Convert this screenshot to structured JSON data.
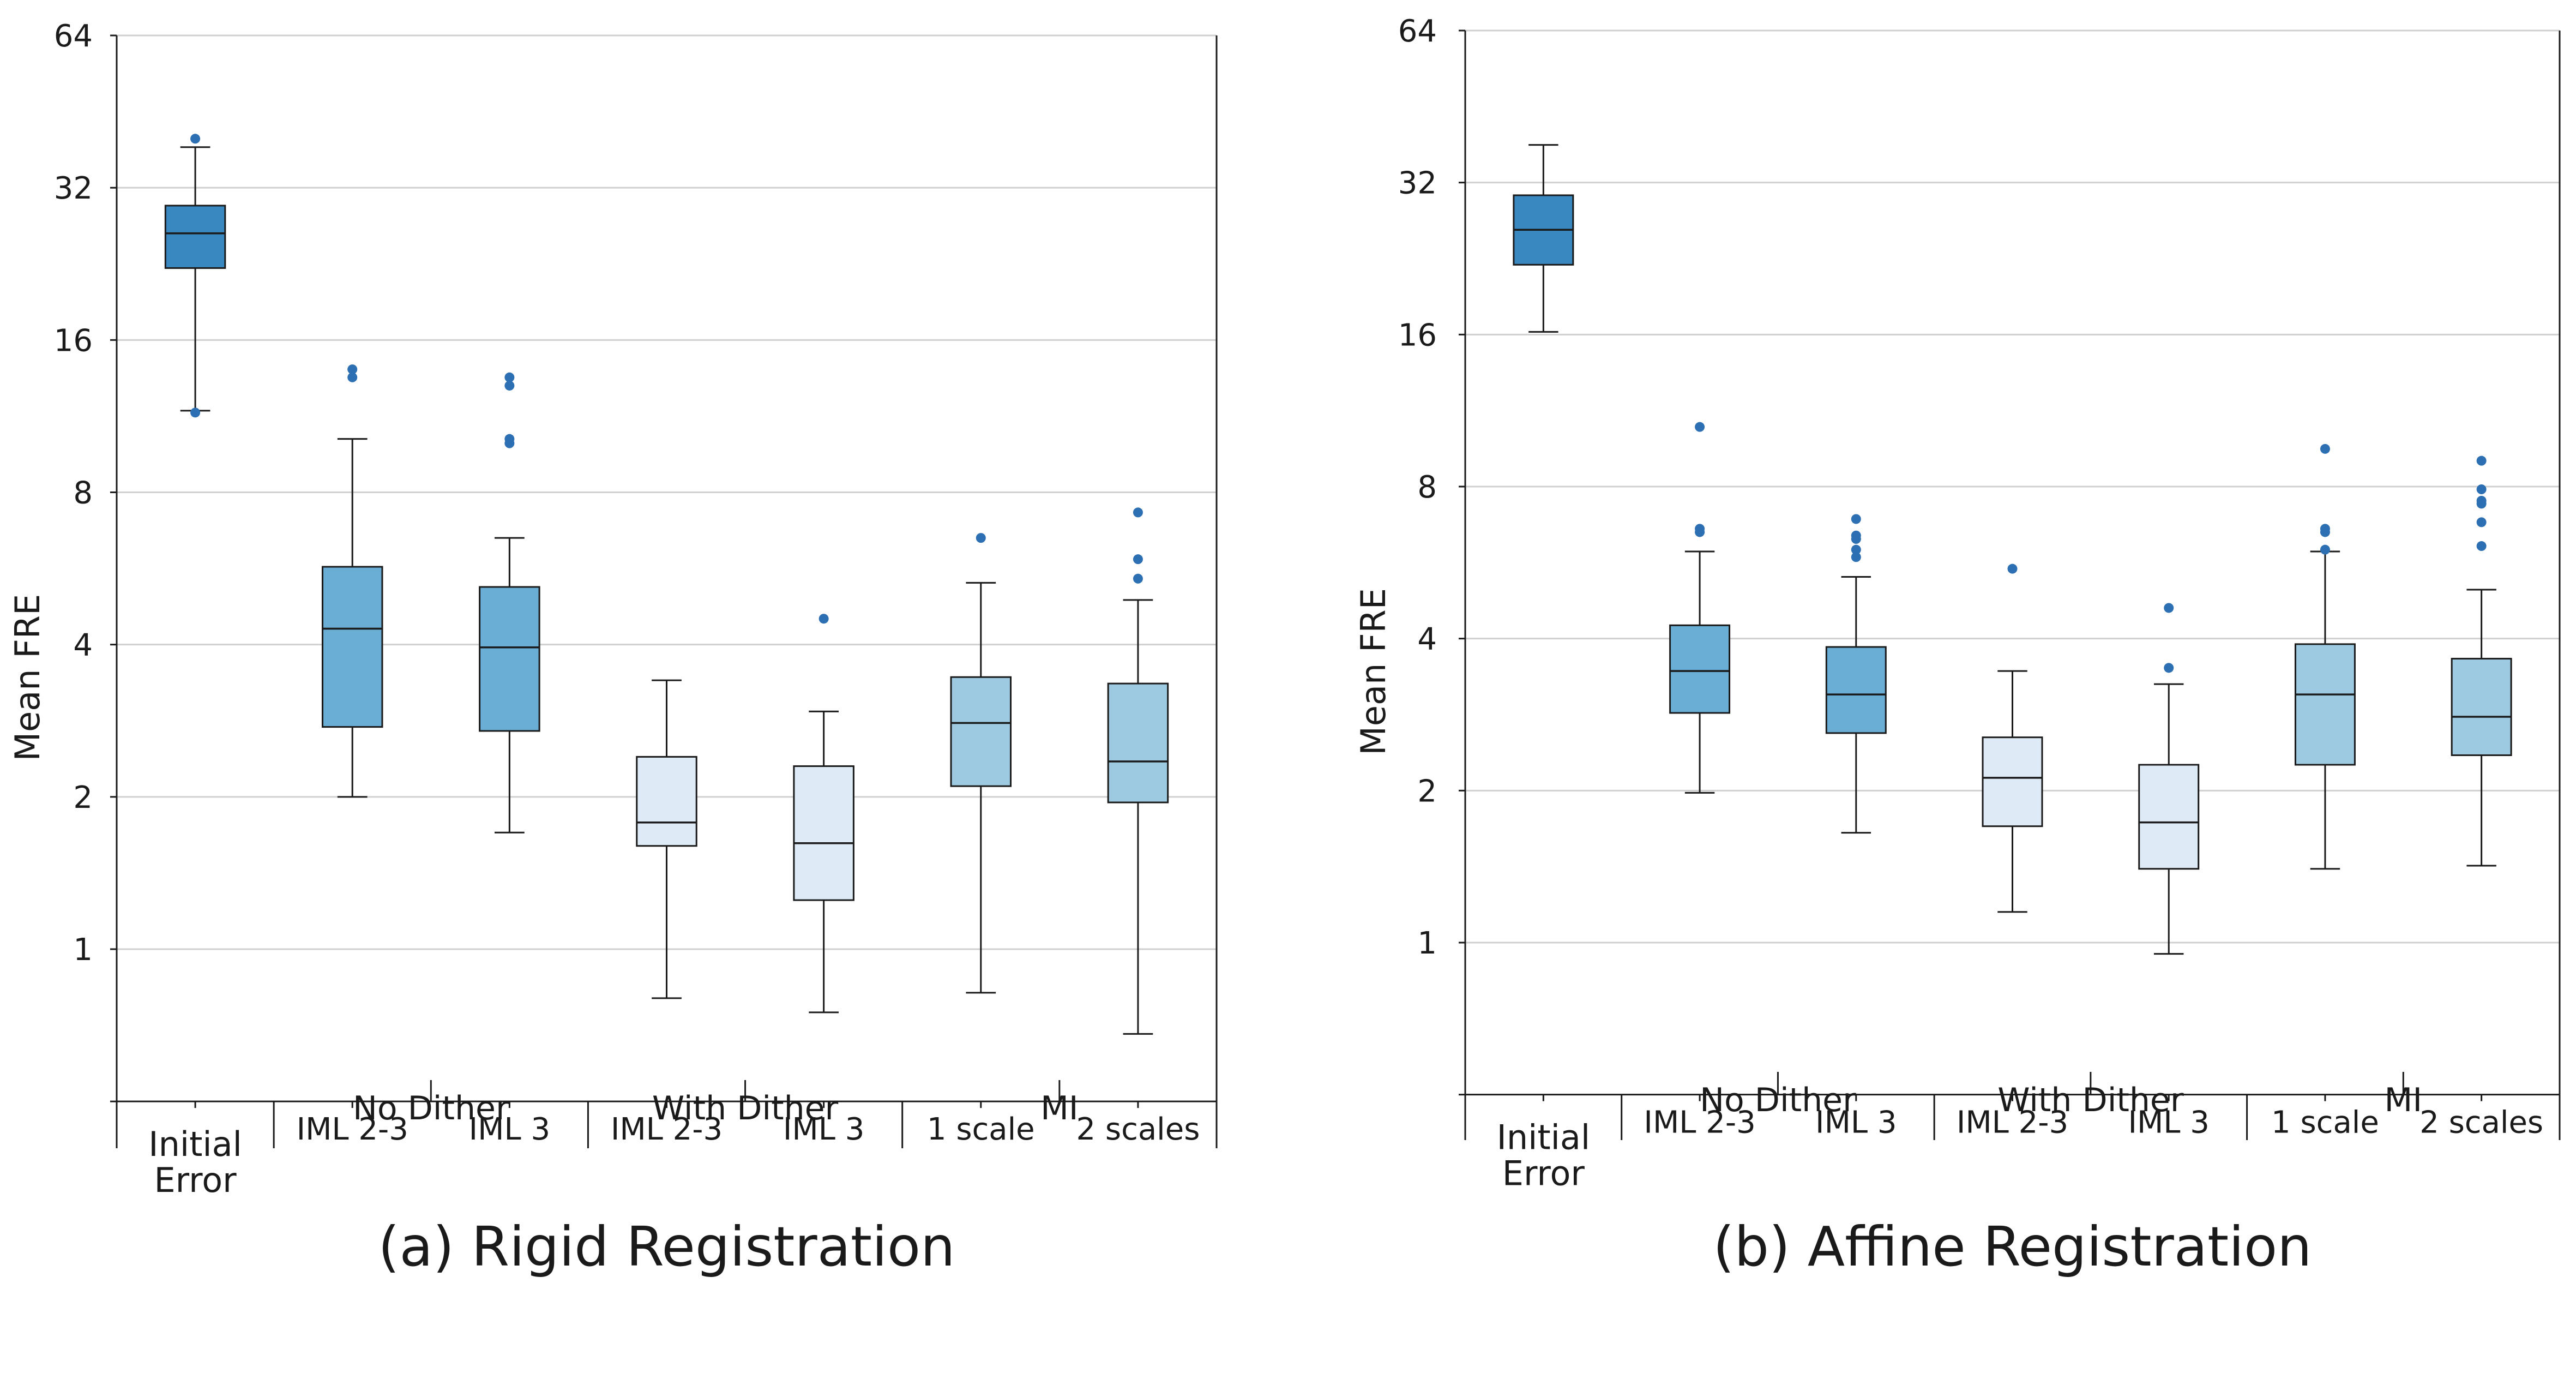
{
  "colors": {
    "initial": "#3a88c0",
    "no_dither": "#6aaed6",
    "with_dither": "#deebf6",
    "mi": "#9ecae1",
    "outlier": "#2d6fb3",
    "grid": "#d0d0d0",
    "box_edge": "#1a1a1a"
  },
  "chart_data": [
    {
      "type": "boxplot",
      "caption": "(a) Rigid Registration",
      "ylabel": "Mean FRE",
      "yscale": "log2",
      "ylim": [
        0.5,
        64
      ],
      "yticks": [
        1,
        2,
        4,
        8,
        16,
        32,
        64
      ],
      "ytick_labels": [
        "1",
        "2",
        "4",
        "8",
        "16",
        "32",
        "64"
      ],
      "grid": true,
      "boxes": [
        {
          "label": "Initial\nError",
          "group": "initial",
          "whislo": 11.6,
          "q1": 22.2,
          "med": 26.0,
          "q3": 29.5,
          "whishi": 38.5,
          "fliers": [
            11.5,
            40.0
          ]
        },
        {
          "label": "IML 2-3",
          "group": "no_dither",
          "whislo": 2.0,
          "q1": 2.75,
          "med": 4.3,
          "q3": 5.7,
          "whishi": 10.2,
          "fliers": [
            13.5,
            14.0
          ]
        },
        {
          "label": "IML 3",
          "group": "no_dither",
          "whislo": 1.7,
          "q1": 2.7,
          "med": 3.95,
          "q3": 5.2,
          "whishi": 6.5,
          "fliers": [
            10.0,
            10.2,
            13.0,
            13.5
          ]
        },
        {
          "label": "IML 2-3",
          "group": "with_dither",
          "whislo": 0.8,
          "q1": 1.6,
          "med": 1.78,
          "q3": 2.4,
          "whishi": 3.4,
          "fliers": []
        },
        {
          "label": "IML 3",
          "group": "with_dither",
          "whislo": 0.75,
          "q1": 1.25,
          "med": 1.62,
          "q3": 2.3,
          "whishi": 2.95,
          "fliers": [
            4.5
          ]
        },
        {
          "label": "1 scale",
          "group": "mi",
          "whislo": 0.82,
          "q1": 2.1,
          "med": 2.8,
          "q3": 3.45,
          "whishi": 5.3,
          "fliers": [
            6.5
          ]
        },
        {
          "label": "2 scales",
          "group": "mi",
          "whislo": 0.68,
          "q1": 1.95,
          "med": 2.35,
          "q3": 3.35,
          "whishi": 4.9,
          "fliers": [
            5.4,
            5.9,
            7.3
          ]
        }
      ],
      "groups": [
        "Initial\nError",
        "No Dither",
        "With Dither",
        "MI"
      ]
    },
    {
      "type": "boxplot",
      "caption": "(b) Affine Registration",
      "ylabel": "Mean FRE",
      "yscale": "log2",
      "ylim": [
        0.5,
        64
      ],
      "yticks": [
        1,
        2,
        4,
        8,
        16,
        32,
        64
      ],
      "ytick_labels": [
        "1",
        "2",
        "4",
        "8",
        "16",
        "32",
        "64"
      ],
      "grid": true,
      "boxes": [
        {
          "label": "Initial\nError",
          "group": "initial",
          "whislo": 16.2,
          "q1": 22.0,
          "med": 25.8,
          "q3": 30.2,
          "whishi": 38.0,
          "fliers": []
        },
        {
          "label": "IML 2-3",
          "group": "no_dither",
          "whislo": 1.98,
          "q1": 2.85,
          "med": 3.45,
          "q3": 4.25,
          "whishi": 5.95,
          "fliers": [
            6.5,
            6.6,
            10.5
          ]
        },
        {
          "label": "IML 3",
          "group": "no_dither",
          "whislo": 1.65,
          "q1": 2.6,
          "med": 3.1,
          "q3": 3.85,
          "whishi": 5.3,
          "fliers": [
            5.8,
            6.0,
            6.3,
            6.4,
            6.9
          ]
        },
        {
          "label": "IML 2-3",
          "group": "with_dither",
          "whislo": 1.15,
          "q1": 1.7,
          "med": 2.12,
          "q3": 2.55,
          "whishi": 3.45,
          "fliers": [
            5.5
          ]
        },
        {
          "label": "IML 3",
          "group": "with_dither",
          "whislo": 0.95,
          "q1": 1.4,
          "med": 1.73,
          "q3": 2.25,
          "whishi": 3.25,
          "fliers": [
            3.5,
            4.6
          ]
        },
        {
          "label": "1 scale",
          "group": "mi",
          "whislo": 1.4,
          "q1": 2.25,
          "med": 3.1,
          "q3": 3.9,
          "whishi": 5.95,
          "fliers": [
            6.0,
            6.5,
            6.6,
            9.5
          ]
        },
        {
          "label": "2 scales",
          "group": "mi",
          "whislo": 1.42,
          "q1": 2.35,
          "med": 2.8,
          "q3": 3.65,
          "whishi": 5.0,
          "fliers": [
            6.1,
            6.8,
            7.4,
            7.5,
            7.9,
            9.0
          ]
        }
      ],
      "groups": [
        "Initial\nError",
        "No Dither",
        "With Dither",
        "MI"
      ]
    }
  ]
}
